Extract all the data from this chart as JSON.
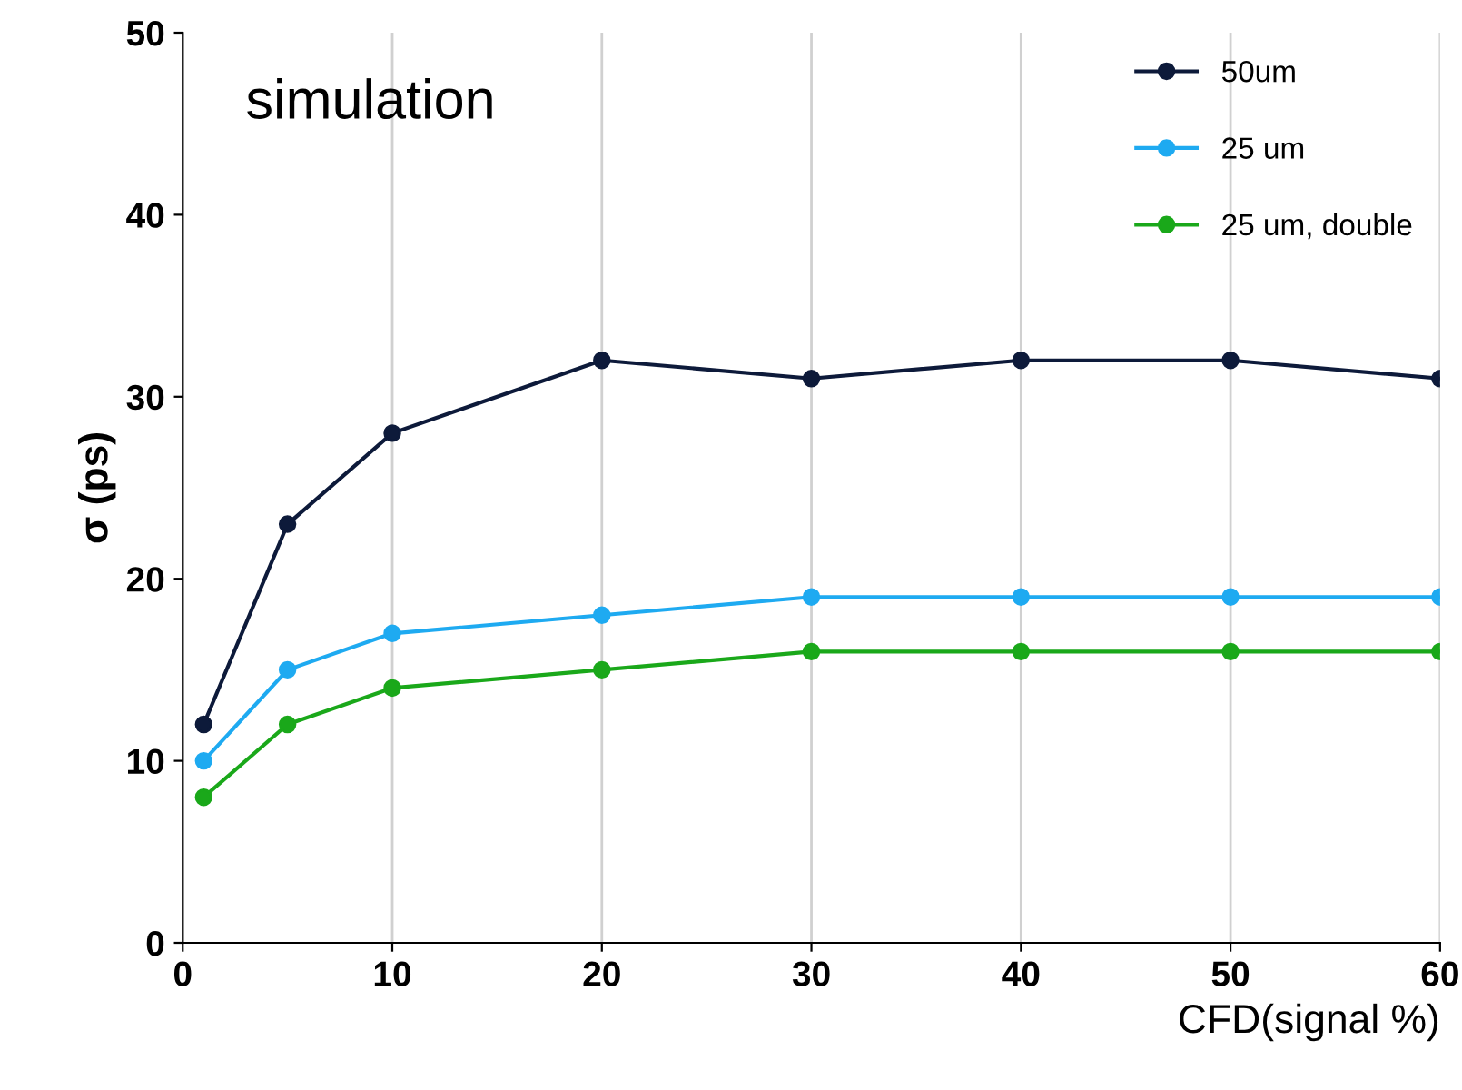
{
  "chart_data": {
    "type": "line",
    "xlabel": "CFD(signal %)",
    "ylabel": "σ (ps)",
    "annotations": [
      "simulation"
    ],
    "x": [
      1,
      5,
      10,
      20,
      30,
      40,
      50,
      60
    ],
    "series": [
      {
        "name": "50um",
        "color": "#0d1a3a",
        "values": [
          12,
          23,
          28,
          32,
          31,
          32,
          32,
          31
        ]
      },
      {
        "name": "25 um",
        "color": "#1eaaf1",
        "values": [
          10,
          15,
          17,
          18,
          19,
          19,
          19,
          19
        ]
      },
      {
        "name": "25 um, double",
        "color": "#1aa81a",
        "values": [
          8,
          12,
          14,
          15,
          16,
          16,
          16,
          16
        ]
      }
    ],
    "xlim": [
      0,
      60
    ],
    "xticks": [
      0,
      10,
      20,
      30,
      40,
      50,
      60
    ],
    "ylim": [
      0,
      50
    ],
    "yticks": [
      0,
      10,
      20,
      30,
      40,
      50
    ],
    "grid": "x",
    "legend": "top right",
    "marker": "circle",
    "line_style": "solid"
  }
}
